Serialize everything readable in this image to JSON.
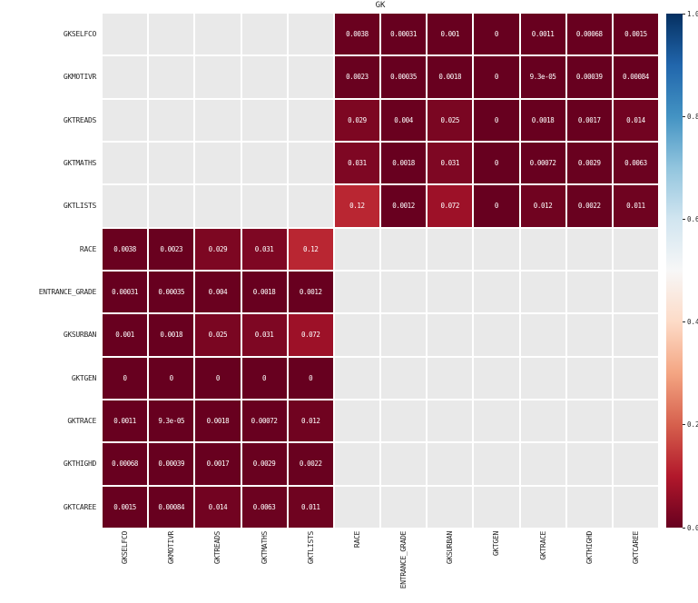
{
  "title": "GK",
  "colors": {
    "background": "#ffffff",
    "masked_cell": "#e9e9e9",
    "cell_text": "#ffffff",
    "label_text": "#262626",
    "grid_line": "#ffffff"
  },
  "chart_data": {
    "type": "heatmap",
    "title": "GK",
    "colormap": "RdBu",
    "vmin": 0,
    "vmax": 1,
    "grid": false,
    "legend_position": "right-colorbar",
    "colorbar_ticks": [
      "1.0",
      "0.8",
      "0.6",
      "0.4",
      "0.2",
      "0.0"
    ],
    "rows": [
      "GKSELFCO",
      "GKMOTIVR",
      "GKTREADS",
      "GKTMATHS",
      "GKTLISTS",
      "RACE",
      "ENTRANCE_GRADE",
      "GKSURBAN",
      "GKTGEN",
      "GKTRACE",
      "GKTHIGHD",
      "GKTCAREE"
    ],
    "columns": [
      "GKSELFCO",
      "GKMOTIVR",
      "GKTREADS",
      "GKTMATHS",
      "GKTLISTS",
      "RACE",
      "ENTRANCE_GRADE",
      "GKSURBAN",
      "GKTGEN",
      "GKTRACE",
      "GKTHIGHD",
      "GKTCAREE"
    ],
    "cells": [
      [
        null,
        null,
        null,
        null,
        null,
        "0.0038",
        "0.00031",
        "0.001",
        "0",
        "0.0011",
        "0.00068",
        "0.0015"
      ],
      [
        null,
        null,
        null,
        null,
        null,
        "0.0023",
        "0.00035",
        "0.0018",
        "0",
        "9.3e-05",
        "0.00039",
        "0.00084"
      ],
      [
        null,
        null,
        null,
        null,
        null,
        "0.029",
        "0.004",
        "0.025",
        "0",
        "0.0018",
        "0.0017",
        "0.014"
      ],
      [
        null,
        null,
        null,
        null,
        null,
        "0.031",
        "0.0018",
        "0.031",
        "0",
        "0.00072",
        "0.0029",
        "0.0063"
      ],
      [
        null,
        null,
        null,
        null,
        null,
        "0.12",
        "0.0012",
        "0.072",
        "0",
        "0.012",
        "0.0022",
        "0.011"
      ],
      [
        "0.0038",
        "0.0023",
        "0.029",
        "0.031",
        "0.12",
        null,
        null,
        null,
        null,
        null,
        null,
        null
      ],
      [
        "0.00031",
        "0.00035",
        "0.004",
        "0.0018",
        "0.0012",
        null,
        null,
        null,
        null,
        null,
        null,
        null
      ],
      [
        "0.001",
        "0.0018",
        "0.025",
        "0.031",
        "0.072",
        null,
        null,
        null,
        null,
        null,
        null,
        null
      ],
      [
        "0",
        "0",
        "0",
        "0",
        "0",
        null,
        null,
        null,
        null,
        null,
        null,
        null
      ],
      [
        "0.0011",
        "9.3e-05",
        "0.0018",
        "0.00072",
        "0.012",
        null,
        null,
        null,
        null,
        null,
        null,
        null
      ],
      [
        "0.00068",
        "0.00039",
        "0.0017",
        "0.0029",
        "0.0022",
        null,
        null,
        null,
        null,
        null,
        null,
        null
      ],
      [
        "0.0015",
        "0.00084",
        "0.014",
        "0.0063",
        "0.011",
        null,
        null,
        null,
        null,
        null,
        null,
        null
      ]
    ]
  }
}
